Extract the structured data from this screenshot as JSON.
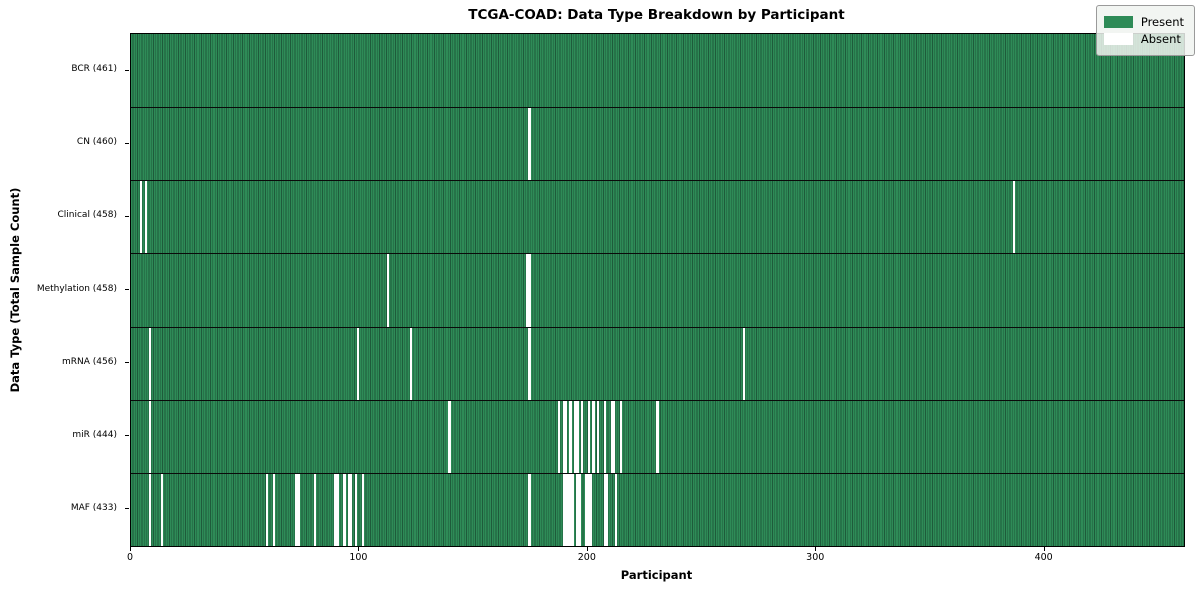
{
  "title": "TCGA-COAD: Data Type Breakdown by Participant",
  "chart_data": {
    "type": "heatmap",
    "title": "TCGA-COAD: Data Type Breakdown by Participant",
    "xlabel": "Participant",
    "ylabel": "Data Type (Total Sample Count)",
    "n_participants": 461,
    "x_ticks": [
      0,
      100,
      200,
      300,
      400
    ],
    "grid": "row-separators-only",
    "legend": {
      "position": "upper right",
      "present_label": "Present",
      "absent_label": "Absent"
    },
    "colors": {
      "present": "#2e8b57",
      "present_edge": "#1e5b3b",
      "absent": "#ffffff",
      "separator": "#0a0a0a",
      "background": "#ffffff"
    },
    "rows": [
      {
        "name": "BCR",
        "label": "BCR (461)",
        "total": 461,
        "absent_participants": []
      },
      {
        "name": "CN",
        "label": "CN (460)",
        "total": 460,
        "absent_participants": [
          174
        ]
      },
      {
        "name": "Clinical",
        "label": "Clinical (458)",
        "total": 458,
        "absent_participants": [
          4,
          6,
          386
        ]
      },
      {
        "name": "Methylation",
        "label": "Methylation (458)",
        "total": 458,
        "absent_participants": [
          112,
          173,
          174
        ]
      },
      {
        "name": "mRNA",
        "label": "mRNA (456)",
        "total": 456,
        "absent_participants": [
          8,
          99,
          122,
          174,
          268
        ]
      },
      {
        "name": "miR",
        "label": "miR (444)",
        "total": 444,
        "absent_participants": [
          8,
          139,
          187,
          189,
          190,
          192,
          194,
          195,
          197,
          200,
          202,
          204,
          207,
          210,
          211,
          214,
          230
        ]
      },
      {
        "name": "MAF",
        "label": "MAF (433)",
        "total": 433,
        "absent_participants": [
          8,
          13,
          59,
          62,
          72,
          73,
          80,
          89,
          90,
          93,
          95,
          96,
          98,
          101,
          174,
          189,
          190,
          191,
          192,
          193,
          195,
          196,
          199,
          200,
          201,
          207,
          208,
          212
        ]
      }
    ]
  }
}
